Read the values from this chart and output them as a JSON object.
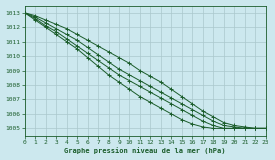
{
  "title": "Graphe pression niveau de la mer (hPa)",
  "bg_color": "#cce8ee",
  "grid_color": "#aac8cc",
  "line_color": "#1a5c2a",
  "xlim": [
    0,
    23
  ],
  "ylim": [
    1004.5,
    1013.5
  ],
  "yticks": [
    1005,
    1006,
    1007,
    1008,
    1009,
    1010,
    1011,
    1012,
    1013
  ],
  "xticks": [
    0,
    1,
    2,
    3,
    4,
    5,
    6,
    7,
    8,
    9,
    10,
    11,
    12,
    13,
    14,
    15,
    16,
    17,
    18,
    19,
    20,
    21,
    22,
    23
  ],
  "series": [
    [
      1013.0,
      1012.8,
      1012.5,
      1012.2,
      1011.9,
      1011.5,
      1011.1,
      1010.7,
      1010.3,
      1009.9,
      1009.5,
      1009.0,
      1008.6,
      1008.2,
      1007.7,
      1007.2,
      1006.7,
      1006.2,
      1005.8,
      1005.4,
      1005.2,
      1005.1,
      1005.0,
      1005.0
    ],
    [
      1013.0,
      1012.7,
      1012.3,
      1011.9,
      1011.5,
      1011.1,
      1010.6,
      1010.1,
      1009.6,
      1009.1,
      1008.7,
      1008.3,
      1007.9,
      1007.5,
      1007.1,
      1006.7,
      1006.3,
      1005.9,
      1005.5,
      1005.2,
      1005.1,
      1005.0,
      1005.0,
      1005.0
    ],
    [
      1013.0,
      1012.6,
      1012.1,
      1011.7,
      1011.2,
      1010.7,
      1010.2,
      1009.7,
      1009.2,
      1008.7,
      1008.3,
      1007.9,
      1007.5,
      1007.1,
      1006.7,
      1006.3,
      1005.9,
      1005.5,
      1005.2,
      1005.0,
      1005.0,
      1005.0,
      1005.0,
      1005.0
    ],
    [
      1013.0,
      1012.5,
      1012.0,
      1011.5,
      1011.0,
      1010.5,
      1009.9,
      1009.3,
      1008.7,
      1008.2,
      1007.7,
      1007.2,
      1006.8,
      1006.4,
      1006.0,
      1005.6,
      1005.3,
      1005.1,
      1005.0,
      1005.0,
      1005.0,
      1005.0,
      1005.0,
      1005.0
    ]
  ]
}
